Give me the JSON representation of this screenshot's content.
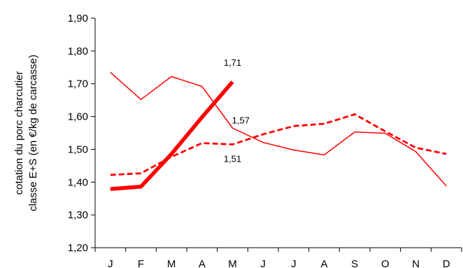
{
  "chart_data": {
    "type": "line",
    "ylabel_lines": [
      "cotation du porc charcutier",
      "classe E+S  (en €/kg de carcasse)"
    ],
    "categories": [
      "J",
      "F",
      "M",
      "A",
      "M",
      "J",
      "J",
      "A",
      "S",
      "O",
      "N",
      "D"
    ],
    "ylim": [
      1.2,
      1.9
    ],
    "yticks": [
      "1,20",
      "1,30",
      "1,40",
      "1,50",
      "1,60",
      "1,70",
      "1,80",
      "1,90"
    ],
    "grid": false,
    "legend": "none",
    "series": [
      {
        "style": "thin-solid",
        "color": "#ff0000",
        "values": [
          1.735,
          1.652,
          1.722,
          1.692,
          1.565,
          1.521,
          1.498,
          1.483,
          1.553,
          1.549,
          1.493,
          1.388
        ]
      },
      {
        "style": "dashed",
        "color": "#ff0000",
        "values": [
          1.422,
          1.427,
          1.477,
          1.519,
          1.515,
          1.546,
          1.571,
          1.578,
          1.607,
          1.555,
          1.505,
          1.486
        ]
      },
      {
        "style": "thick-solid",
        "color": "#ff0000",
        "values": [
          1.379,
          1.386,
          1.486,
          1.598,
          1.706,
          null,
          null,
          null,
          null,
          null,
          null,
          null
        ]
      }
    ],
    "annotations": [
      {
        "text": "1,71",
        "x_index": 4,
        "y": 1.755
      },
      {
        "text": "1,57",
        "x_index": 4.27,
        "y": 1.579
      },
      {
        "text": "1,51",
        "x_index": 4.0,
        "y": 1.461
      }
    ]
  }
}
